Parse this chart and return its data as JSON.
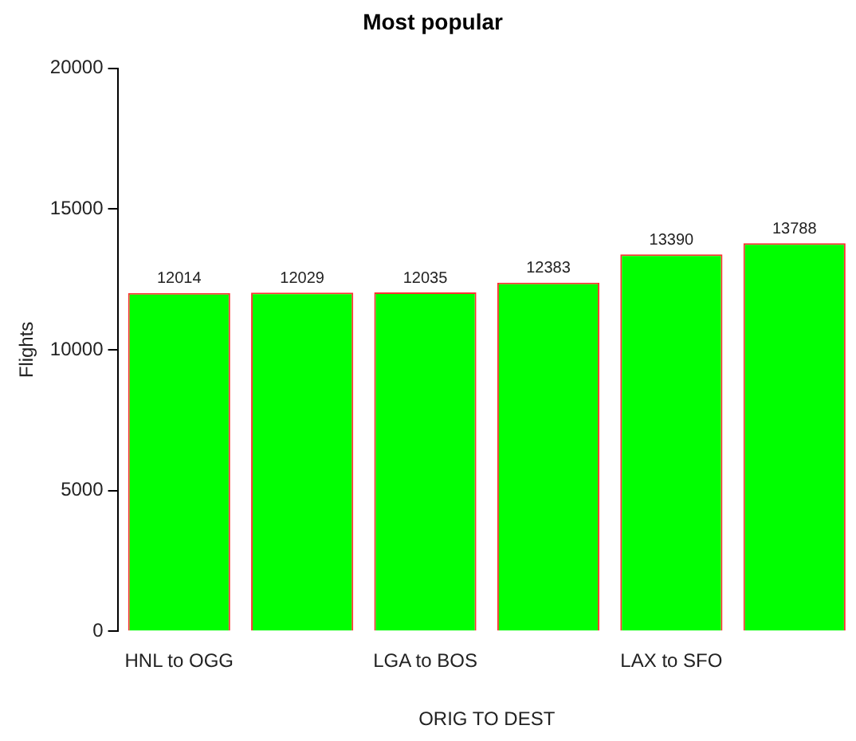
{
  "chart_data": {
    "type": "bar",
    "title": "Most popular",
    "xlabel": "ORIG TO DEST",
    "ylabel": "Flights",
    "categories": [
      "HNL to OGG",
      null,
      "LGA to BOS",
      null,
      "LAX to SFO",
      null
    ],
    "values": [
      12014,
      12029,
      12035,
      12383,
      13390,
      13788
    ],
    "color": "#00ff00",
    "ylim": [
      0,
      20000
    ],
    "yticks": [
      0,
      5000,
      10000,
      15000,
      20000
    ],
    "grid": false,
    "legend": false,
    "data_labels": true
  }
}
